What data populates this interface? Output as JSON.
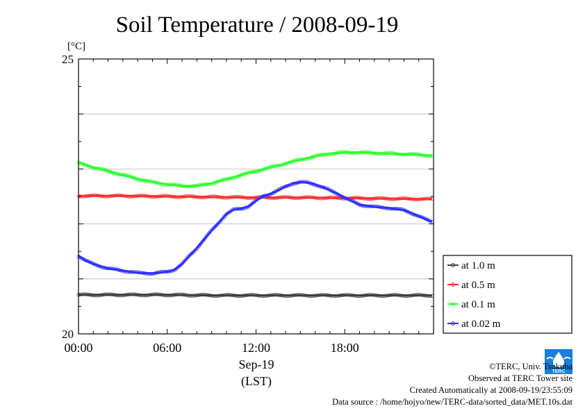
{
  "chart_data": {
    "type": "line",
    "title": "Soil Temperature / 2008-09-19",
    "ylabel": "[°C]",
    "ylim": [
      20,
      25
    ],
    "yticks": [
      {
        "v": 25,
        "label": "25"
      },
      {
        "v": 20,
        "label": "20"
      }
    ],
    "ygrid": [
      21,
      22,
      23,
      24
    ],
    "xlim": [
      0,
      24
    ],
    "xticks": [
      {
        "v": 0,
        "label": "00:00"
      },
      {
        "v": 6,
        "label": "06:00"
      },
      {
        "v": 12,
        "label": "12:00"
      },
      {
        "v": 18,
        "label": "18:00"
      }
    ],
    "xlabel_date": "Sep-19",
    "xlabel_tz": "(LST)",
    "series": [
      {
        "name": "at 1.0 m",
        "color": "#404040",
        "x": [
          0,
          3,
          6,
          9,
          12,
          15,
          18,
          21,
          23.9
        ],
        "y": [
          20.71,
          20.71,
          20.71,
          20.7,
          20.7,
          20.7,
          20.7,
          20.7,
          20.7
        ]
      },
      {
        "name": "at 0.5 m",
        "color": "#ff3030",
        "x": [
          0,
          3,
          6,
          9,
          12,
          15,
          18,
          21,
          23.9
        ],
        "y": [
          22.51,
          22.51,
          22.5,
          22.49,
          22.48,
          22.48,
          22.47,
          22.46,
          22.45
        ]
      },
      {
        "name": "at 0.1 m",
        "color": "#30ff30",
        "x": [
          0,
          1,
          2,
          3,
          4,
          5,
          6,
          7,
          8,
          9,
          10,
          11,
          12,
          13,
          14,
          15,
          16,
          17,
          18,
          19,
          20,
          21,
          22,
          23,
          23.9
        ],
        "y": [
          23.11,
          23.03,
          22.96,
          22.89,
          22.82,
          22.76,
          22.72,
          22.69,
          22.69,
          22.74,
          22.81,
          22.89,
          22.96,
          23.03,
          23.1,
          23.17,
          23.23,
          23.28,
          23.3,
          23.3,
          23.29,
          23.28,
          23.27,
          23.26,
          23.24
        ]
      },
      {
        "name": "at 0.02 m",
        "color": "#3030ff",
        "x": [
          0,
          0.5,
          1,
          1.5,
          2,
          3,
          4,
          5,
          6,
          6.5,
          7,
          7.5,
          8,
          8.5,
          9,
          9.5,
          10,
          10.5,
          11,
          11.5,
          12,
          12.5,
          13,
          13.5,
          14,
          14.5,
          15,
          15.5,
          16,
          16.5,
          17,
          17.5,
          18,
          18.5,
          19,
          19.5,
          20,
          21,
          22,
          22.5,
          23,
          23.5,
          23.9
        ],
        "y": [
          21.42,
          21.33,
          21.27,
          21.23,
          21.19,
          21.15,
          21.11,
          21.1,
          21.13,
          21.17,
          21.27,
          21.42,
          21.56,
          21.72,
          21.88,
          22.03,
          22.18,
          22.26,
          22.28,
          22.32,
          22.42,
          22.51,
          22.55,
          22.61,
          22.68,
          22.74,
          22.76,
          22.75,
          22.72,
          22.67,
          22.61,
          22.55,
          22.48,
          22.41,
          22.35,
          22.33,
          22.31,
          22.29,
          22.25,
          22.2,
          22.14,
          22.08,
          22.04
        ]
      }
    ]
  },
  "credits": {
    "copyright": "©TERC, Univ. Tsukuba",
    "site": "Observed at TERC Tower site",
    "created": "Created Automatically at 2008-09-19/23:55:09",
    "source": "Data source : /home/hojyo/new/TERC-data/sorted_data/MET.10s.dat"
  },
  "logo": {
    "text": "TERC",
    "color": "#1a7fd8"
  }
}
